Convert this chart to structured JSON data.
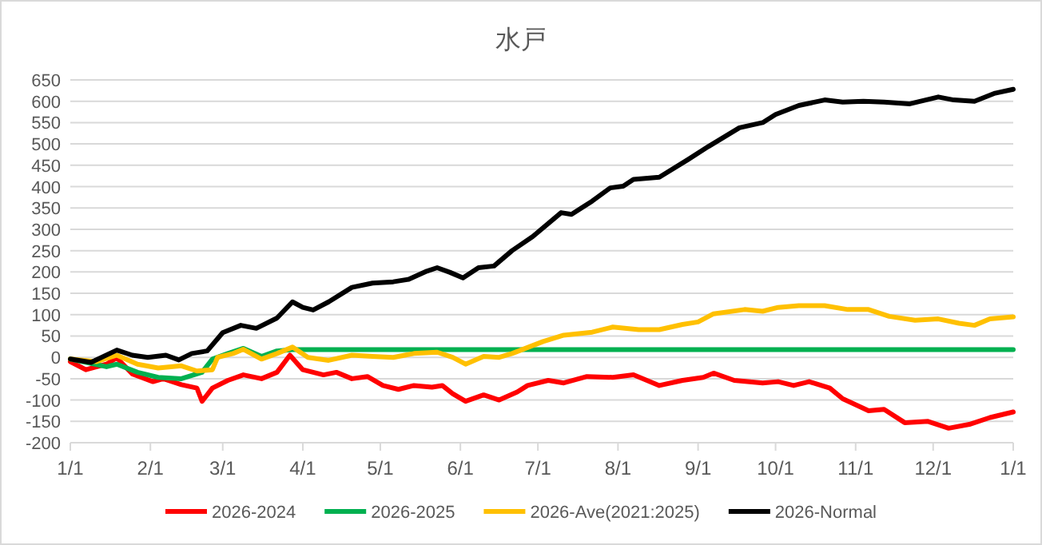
{
  "chart_data": {
    "type": "line",
    "title": "水戸",
    "xlim": [
      "2026-01-01",
      "2027-01-01"
    ],
    "ylim": [
      -200,
      650
    ],
    "xticks": [
      {
        "value": "2026-01-01",
        "label": "1/1"
      },
      {
        "value": "2026-02-01",
        "label": "2/1"
      },
      {
        "value": "2026-03-01",
        "label": "3/1"
      },
      {
        "value": "2026-04-01",
        "label": "4/1"
      },
      {
        "value": "2026-05-01",
        "label": "5/1"
      },
      {
        "value": "2026-06-01",
        "label": "6/1"
      },
      {
        "value": "2026-07-01",
        "label": "7/1"
      },
      {
        "value": "2026-08-01",
        "label": "8/1"
      },
      {
        "value": "2026-09-01",
        "label": "9/1"
      },
      {
        "value": "2026-10-01",
        "label": "10/1"
      },
      {
        "value": "2026-11-01",
        "label": "11/1"
      },
      {
        "value": "2026-12-01",
        "label": "12/1"
      },
      {
        "value": "2027-01-01",
        "label": "1/1"
      }
    ],
    "yticks": [
      -200,
      -150,
      -100,
      -50,
      0,
      50,
      100,
      150,
      200,
      250,
      300,
      350,
      400,
      450,
      500,
      550,
      600,
      650
    ],
    "grid": "y",
    "legend": "bottom",
    "series": [
      {
        "name": "2026-2024",
        "color": "#ff0000",
        "x": [
          "2026-01-01",
          "2026-01-07",
          "2026-01-15",
          "2026-01-19",
          "2026-01-25",
          "2026-02-02",
          "2026-02-06",
          "2026-02-13",
          "2026-02-19",
          "2026-02-21",
          "2026-02-25",
          "2026-03-03",
          "2026-03-09",
          "2026-03-16",
          "2026-03-22",
          "2026-03-27",
          "2026-04-01",
          "2026-04-09",
          "2026-04-14",
          "2026-04-20",
          "2026-04-26",
          "2026-05-02",
          "2026-05-08",
          "2026-05-14",
          "2026-05-21",
          "2026-05-25",
          "2026-05-29",
          "2026-06-03",
          "2026-06-10",
          "2026-06-16",
          "2026-06-23",
          "2026-06-27",
          "2026-07-05",
          "2026-07-11",
          "2026-07-20",
          "2026-07-30",
          "2026-08-07",
          "2026-08-17",
          "2026-08-26",
          "2026-09-03",
          "2026-09-07",
          "2026-09-15",
          "2026-09-26",
          "2026-10-02",
          "2026-10-08",
          "2026-10-14",
          "2026-10-22",
          "2026-10-27",
          "2026-11-06",
          "2026-11-12",
          "2026-11-20",
          "2026-11-29",
          "2026-12-07",
          "2026-12-15",
          "2026-12-23",
          "2027-01-01"
        ],
        "values": [
          -10,
          -29,
          -16,
          -1,
          -39,
          -57,
          -50,
          -64,
          -72,
          -103,
          -72,
          -54,
          -41,
          -50,
          -35,
          5,
          -29,
          -41,
          -35,
          -50,
          -45,
          -66,
          -75,
          -66,
          -70,
          -66,
          -85,
          -103,
          -88,
          -100,
          -81,
          -66,
          -54,
          -60,
          -45,
          -47,
          -41,
          -66,
          -54,
          -47,
          -37,
          -54,
          -60,
          -57,
          -66,
          -57,
          -72,
          -97,
          -125,
          -122,
          -153,
          -150,
          -166,
          -157,
          -141,
          -128
        ]
      },
      {
        "name": "2026-2025",
        "color": "#00b050",
        "x": [
          "2026-01-01",
          "2026-01-15",
          "2026-01-19",
          "2026-01-27",
          "2026-02-04",
          "2026-02-13",
          "2026-02-21",
          "2026-02-25",
          "2026-03-03",
          "2026-03-09",
          "2026-03-16",
          "2026-03-22",
          "2026-03-28",
          "2026-05-31",
          "2026-09-08",
          "2027-01-01"
        ],
        "values": [
          -4,
          -22,
          -16,
          -35,
          -47,
          -50,
          -35,
          -4,
          9,
          21,
          2,
          15,
          18,
          18,
          18,
          18
        ]
      },
      {
        "name": "2026-Ave(2021:2025)",
        "color": "#ffc000",
        "x": [
          "2026-01-01",
          "2026-01-11",
          "2026-01-19",
          "2026-01-27",
          "2026-02-04",
          "2026-02-13",
          "2026-02-19",
          "2026-02-25",
          "2026-02-27",
          "2026-03-05",
          "2026-03-09",
          "2026-03-16",
          "2026-03-22",
          "2026-03-28",
          "2026-04-03",
          "2026-04-11",
          "2026-04-20",
          "2026-04-28",
          "2026-05-06",
          "2026-05-14",
          "2026-05-23",
          "2026-05-29",
          "2026-06-03",
          "2026-06-10",
          "2026-06-16",
          "2026-06-21",
          "2026-07-03",
          "2026-07-11",
          "2026-07-22",
          "2026-07-30",
          "2026-08-09",
          "2026-08-17",
          "2026-08-26",
          "2026-09-01",
          "2026-09-07",
          "2026-09-19",
          "2026-09-26",
          "2026-10-02",
          "2026-10-10",
          "2026-10-20",
          "2026-10-29",
          "2026-11-06",
          "2026-11-14",
          "2026-11-24",
          "2026-12-03",
          "2026-12-11",
          "2026-12-17",
          "2026-12-23",
          "2027-01-01"
        ],
        "values": [
          -4,
          -10,
          5,
          -16,
          -25,
          -20,
          -32,
          -29,
          0,
          9,
          19,
          -4,
          9,
          24,
          0,
          -7,
          5,
          2,
          0,
          9,
          12,
          0,
          -16,
          2,
          0,
          9,
          37,
          52,
          59,
          71,
          65,
          65,
          77,
          83,
          102,
          112,
          108,
          117,
          121,
          121,
          112,
          112,
          96,
          87,
          90,
          80,
          75,
          90,
          95
        ]
      },
      {
        "name": "2026-Normal",
        "color": "#000000",
        "x": [
          "2026-01-01",
          "2026-01-09",
          "2026-01-19",
          "2026-01-25",
          "2026-01-31",
          "2026-02-07",
          "2026-02-12",
          "2026-02-17",
          "2026-02-23",
          "2026-03-01",
          "2026-03-08",
          "2026-03-14",
          "2026-03-22",
          "2026-03-28",
          "2026-04-01",
          "2026-04-05",
          "2026-04-11",
          "2026-04-20",
          "2026-04-28",
          "2026-05-06",
          "2026-05-12",
          "2026-05-19",
          "2026-05-23",
          "2026-05-28",
          "2026-06-02",
          "2026-06-08",
          "2026-06-14",
          "2026-06-21",
          "2026-06-29",
          "2026-07-10",
          "2026-07-14",
          "2026-07-22",
          "2026-07-29",
          "2026-08-03",
          "2026-08-07",
          "2026-08-17",
          "2026-08-28",
          "2026-09-05",
          "2026-09-17",
          "2026-09-26",
          "2026-10-01",
          "2026-10-10",
          "2026-10-20",
          "2026-10-27",
          "2026-11-04",
          "2026-11-12",
          "2026-11-22",
          "2026-12-03",
          "2026-12-09",
          "2026-12-17",
          "2026-12-25",
          "2027-01-01"
        ],
        "values": [
          -4,
          -12,
          17,
          5,
          0,
          5,
          -6,
          9,
          15,
          58,
          75,
          68,
          92,
          130,
          117,
          111,
          130,
          164,
          174,
          177,
          183,
          202,
          210,
          199,
          186,
          210,
          214,
          250,
          283,
          339,
          335,
          366,
          397,
          401,
          417,
          422,
          463,
          494,
          538,
          550,
          569,
          590,
          603,
          598,
          600,
          598,
          594,
          610,
          603,
          600,
          619,
          628
        ]
      }
    ]
  }
}
